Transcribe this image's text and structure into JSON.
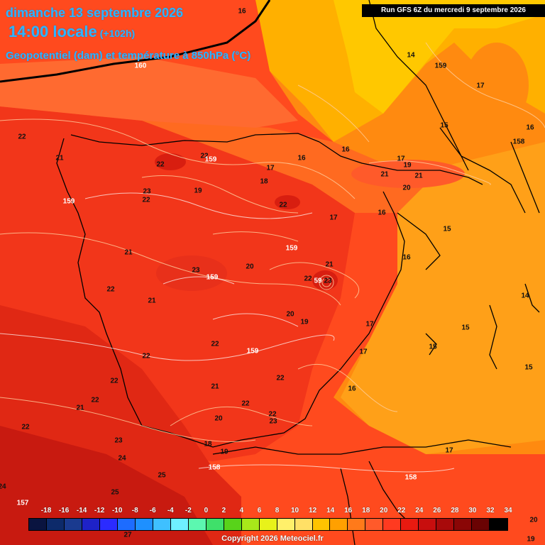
{
  "header": {
    "date_line": "dimanche 13 septembre 2026",
    "time_line": "14:00 locale",
    "lead_time": "(+102h)",
    "field_line": "Geopotentiel (dam) et température à 850hPa (°C)",
    "run_info": "Run GFS 6Z du mercredi 9 septembre 2026"
  },
  "map_labels": {
    "l1": "16",
    "l2": "160",
    "l3": "14",
    "l4": "159",
    "l5": "17",
    "l6": "15",
    "l7": "16",
    "l8": "158",
    "l9": "22",
    "l10": "21",
    "l11": "22",
    "l12": "22",
    "l13": "159",
    "l14": "16",
    "l15": "17",
    "l16": "16",
    "l17": "17",
    "l18": "19",
    "l19": "21",
    "l20": "21",
    "l21": "20",
    "l22": "23",
    "l23": "22",
    "l24": "19",
    "l25": "18",
    "l26": "22",
    "l27": "159",
    "l28": "17",
    "l29": "16",
    "l30": "15",
    "l31": "21",
    "l32": "159",
    "l33": "16",
    "l34": "23",
    "l35": "159",
    "l36": "20",
    "l37": "21",
    "l38": "22",
    "l39": "59",
    "l40": "23",
    "l41": "22",
    "l42": "21",
    "l43": "14",
    "l44": "20",
    "l45": "19",
    "l46": "17",
    "l47": "15",
    "l48": "22",
    "l49": "159",
    "l50": "17",
    "l51": "15",
    "l52": "22",
    "l53": "22",
    "l54": "22",
    "l55": "15",
    "l56": "21",
    "l57": "22",
    "l58": "16",
    "l59": "21",
    "l60": "22",
    "l61": "22",
    "l62": "20",
    "l63": "23",
    "l64": "22",
    "l65": "18",
    "l66": "19",
    "l67": "23",
    "l68": "17",
    "l69": "24",
    "l70": "158",
    "l71": "25",
    "l72": "158",
    "l73": "24",
    "l74": "25",
    "l75": "157",
    "l76": "27",
    "l77": "20",
    "l78": "19"
  },
  "scale": {
    "labels": [
      "-18",
      "-16",
      "-14",
      "-12",
      "-10",
      "-8",
      "-6",
      "-4",
      "-2",
      "0",
      "2",
      "4",
      "6",
      "8",
      "10",
      "12",
      "14",
      "16",
      "18",
      "20",
      "22",
      "24",
      "26",
      "28",
      "30",
      "32",
      "34"
    ],
    "colors": [
      "#0a1440",
      "#0d2a6a",
      "#1a3a8f",
      "#1e22c8",
      "#2b2bff",
      "#1d6cff",
      "#1e90ff",
      "#3fc0ff",
      "#6ff0ff",
      "#5cf7b0",
      "#3fe06a",
      "#58d31a",
      "#a8e81a",
      "#e8f21a",
      "#fff06a",
      "#ffe066",
      "#ffc300",
      "#ffa000",
      "#ff7a1a",
      "#ff5a2a",
      "#ff3a20",
      "#e81a10",
      "#c80e0e",
      "#a80a0a",
      "#8a0606",
      "#6a0303",
      "#000000"
    ]
  },
  "copyright": "Copyright 2026 Meteociel.fr"
}
